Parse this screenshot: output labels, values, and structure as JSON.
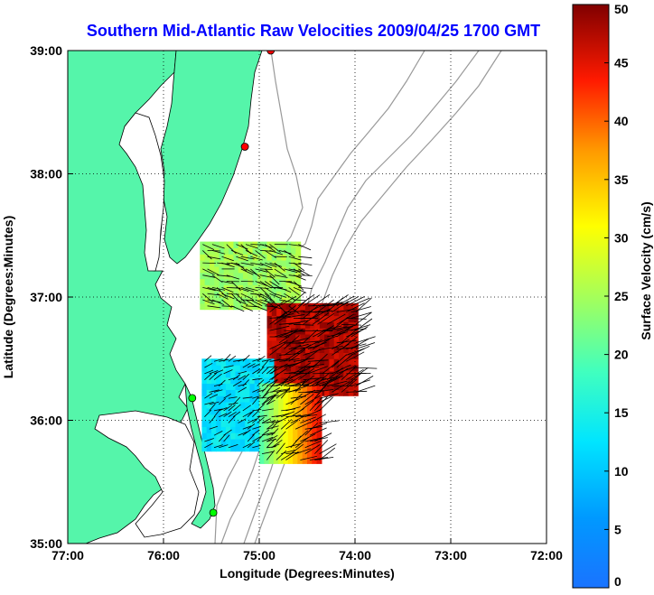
{
  "title": "Southern Mid-Atlantic Raw Velocities 2009/04/25 1700 GMT",
  "map": {
    "xlabel": "Longitude (Degrees:Minutes)",
    "ylabel": "Latitude (Degrees:Minutes)",
    "x_ticks": [
      "77:00",
      "76:00",
      "75:00",
      "74:00",
      "73:00",
      "72:00"
    ],
    "x_tick_values": [
      -77,
      -76,
      -75,
      -74,
      -73,
      -72
    ],
    "y_ticks": [
      "39:00",
      "38:00",
      "37:00",
      "36:00",
      "35:00"
    ],
    "y_tick_values": [
      39,
      38,
      37,
      36,
      35
    ],
    "xlim": [
      -77,
      -72
    ],
    "ylim": [
      35,
      39
    ],
    "grid": "dotted",
    "land_color": "#55f5aa",
    "water_color": "#ffffff",
    "stations": [
      {
        "lon": -74.88,
        "lat": 39.0,
        "color": "#ff0000"
      },
      {
        "lon": -75.15,
        "lat": 38.22,
        "color": "#ff0000"
      },
      {
        "lon": -75.7,
        "lat": 36.18,
        "color": "#00ff00"
      },
      {
        "lon": -75.48,
        "lat": 35.25,
        "color": "#00ff00"
      }
    ]
  },
  "colorbar": {
    "label": "Surface Velocity (cm/s)",
    "ticks": [
      "0",
      "5",
      "10",
      "15",
      "20",
      "25",
      "30",
      "35",
      "40",
      "45",
      "50"
    ],
    "tick_values": [
      0,
      5,
      10,
      15,
      20,
      25,
      30,
      35,
      40,
      45,
      50
    ],
    "range": [
      0,
      50
    ],
    "colormap": "jet"
  },
  "velocity_fields": [
    {
      "region": "north",
      "lon_range": [
        -75.62,
        -74.62
      ],
      "lat_range": [
        36.9,
        37.4
      ],
      "speed_range": [
        18,
        27
      ]
    },
    {
      "region": "south-east",
      "lon_range": [
        -74.92,
        -74.0
      ],
      "lat_range": [
        36.2,
        36.92
      ],
      "speed_range": [
        40,
        50
      ]
    },
    {
      "region": "south-west",
      "lon_range": [
        -75.6,
        -74.88
      ],
      "lat_range": [
        35.75,
        36.45
      ],
      "speed_range": [
        5,
        15
      ]
    },
    {
      "region": "south-shore",
      "lon_range": [
        -75.0,
        -74.4
      ],
      "lat_range": [
        35.65,
        36.25
      ],
      "speed_range": [
        20,
        45
      ]
    }
  ]
}
